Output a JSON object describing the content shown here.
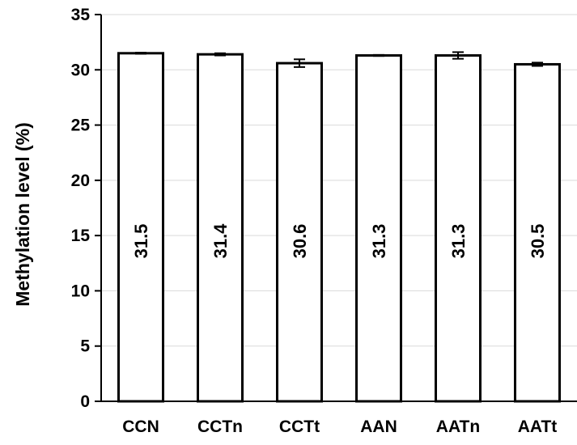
{
  "chart_data": {
    "type": "bar",
    "title": "",
    "xlabel": "",
    "ylabel": "Methylation level (%)",
    "ylim": [
      0,
      35
    ],
    "yticks": [
      0,
      5,
      10,
      15,
      20,
      25,
      30,
      35
    ],
    "grid": true,
    "categories": [
      "CCN",
      "CCTn",
      "CCTt",
      "AAN",
      "AATn",
      "AATt"
    ],
    "values": [
      31.5,
      31.4,
      30.6,
      31.3,
      31.3,
      30.5
    ],
    "value_labels": [
      "31.5",
      "31.4",
      "30.6",
      "31.3",
      "31.3",
      "30.5"
    ],
    "error": [
      0.05,
      0.1,
      0.35,
      0.05,
      0.3,
      0.15
    ],
    "colors": {
      "bar_fill": "#ffffff",
      "bar_stroke": "#000000",
      "grid": "#d9d9d9"
    }
  }
}
